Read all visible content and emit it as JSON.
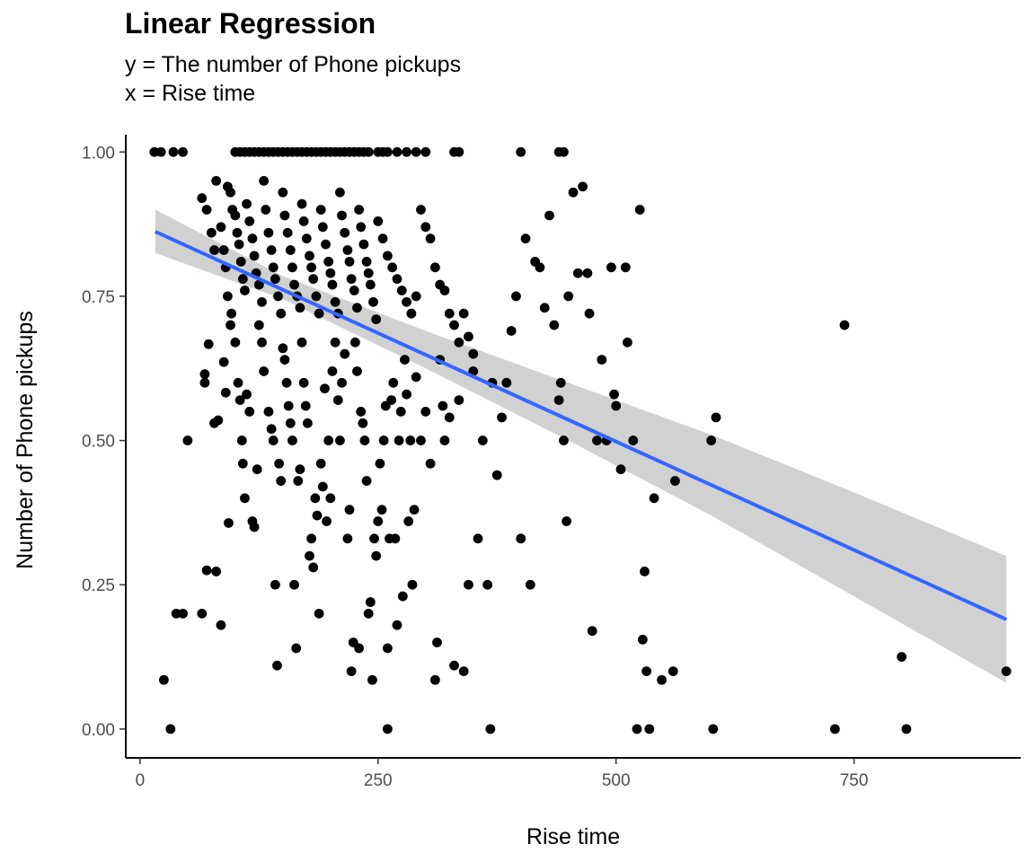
{
  "header": {
    "title": "Linear Regression",
    "subtitle_line1": "y = The number of Phone pickups",
    "subtitle_line2": "x = Rise time"
  },
  "chart_data": {
    "type": "scatter",
    "title": "Linear Regression",
    "subtitle": [
      "y = The number of Phone pickups",
      "x = Rise time"
    ],
    "xlabel": "Rise time",
    "ylabel": "Number of Phone pickups",
    "xlim": [
      -15,
      925
    ],
    "ylim": [
      -0.05,
      1.03
    ],
    "x_ticks": [
      0,
      250,
      500,
      750
    ],
    "x_tick_labels": [
      "0",
      "250",
      "500",
      "750"
    ],
    "y_ticks": [
      0,
      0.25,
      0.5,
      0.75,
      1
    ],
    "y_tick_labels": [
      "0.00",
      "0.25",
      "0.50",
      "0.75",
      "1.00"
    ],
    "grid": false,
    "colors": {
      "points": "#000000",
      "fit_line": "#3366ff",
      "confidence_band": "#cccccc"
    },
    "fit_line": {
      "x": [
        16,
        910
      ],
      "y": [
        0.862,
        0.19
      ]
    },
    "confidence_band": {
      "x": [
        16,
        150,
        300,
        450,
        600,
        750,
        910
      ],
      "upper": [
        0.9,
        0.785,
        0.69,
        0.6,
        0.51,
        0.41,
        0.3
      ],
      "lower": [
        0.825,
        0.745,
        0.625,
        0.5,
        0.37,
        0.23,
        0.08
      ]
    },
    "points": [
      [
        25,
        0.085
      ],
      [
        32,
        0
      ],
      [
        38,
        0.2
      ],
      [
        15,
        1
      ],
      [
        22,
        1
      ],
      [
        45,
        1
      ],
      [
        50,
        0.5
      ],
      [
        65,
        0.2
      ],
      [
        68,
        0.615
      ],
      [
        68,
        0.6
      ],
      [
        70,
        0.275
      ],
      [
        72,
        0.667
      ],
      [
        78,
        0.53
      ],
      [
        80,
        0.273
      ],
      [
        82,
        0.535
      ],
      [
        85,
        0.18
      ],
      [
        88,
        0.636
      ],
      [
        90,
        0.583
      ],
      [
        93,
        0.357
      ],
      [
        95,
        0.7
      ],
      [
        65,
        0.92
      ],
      [
        70,
        0.9
      ],
      [
        75,
        0.86
      ],
      [
        78,
        0.83
      ],
      [
        80,
        0.95
      ],
      [
        85,
        0.87
      ],
      [
        88,
        0.83
      ],
      [
        90,
        0.8
      ],
      [
        92,
        0.94
      ],
      [
        95,
        0.93
      ],
      [
        97,
        0.9
      ],
      [
        100,
        0.89
      ],
      [
        102,
        0.86
      ],
      [
        104,
        0.84
      ],
      [
        106,
        0.81
      ],
      [
        108,
        0.78
      ],
      [
        110,
        0.76
      ],
      [
        112,
        0.91
      ],
      [
        115,
        0.88
      ],
      [
        118,
        0.85
      ],
      [
        120,
        0.82
      ],
      [
        122,
        0.79
      ],
      [
        125,
        0.77
      ],
      [
        128,
        0.74
      ],
      [
        130,
        0.95
      ],
      [
        132,
        0.9
      ],
      [
        135,
        0.86
      ],
      [
        138,
        0.83
      ],
      [
        140,
        0.8
      ],
      [
        142,
        0.78
      ],
      [
        145,
        0.75
      ],
      [
        148,
        0.72
      ],
      [
        150,
        0.93
      ],
      [
        152,
        0.89
      ],
      [
        155,
        0.86
      ],
      [
        158,
        0.83
      ],
      [
        160,
        0.8
      ],
      [
        162,
        0.77
      ],
      [
        165,
        0.75
      ],
      [
        168,
        0.73
      ],
      [
        170,
        0.91
      ],
      [
        172,
        0.88
      ],
      [
        175,
        0.85
      ],
      [
        178,
        0.82
      ],
      [
        180,
        0.8
      ],
      [
        182,
        0.78
      ],
      [
        185,
        0.75
      ],
      [
        188,
        0.72
      ],
      [
        190,
        0.9
      ],
      [
        192,
        0.87
      ],
      [
        195,
        0.84
      ],
      [
        198,
        0.81
      ],
      [
        200,
        0.79
      ],
      [
        202,
        0.77
      ],
      [
        205,
        0.74
      ],
      [
        208,
        0.72
      ],
      [
        210,
        0.93
      ],
      [
        212,
        0.89
      ],
      [
        215,
        0.86
      ],
      [
        218,
        0.83
      ],
      [
        220,
        0.81
      ],
      [
        222,
        0.78
      ],
      [
        225,
        0.76
      ],
      [
        228,
        0.73
      ],
      [
        230,
        0.9
      ],
      [
        232,
        0.87
      ],
      [
        235,
        0.84
      ],
      [
        238,
        0.81
      ],
      [
        240,
        0.79
      ],
      [
        242,
        0.77
      ],
      [
        245,
        0.74
      ],
      [
        248,
        0.71
      ],
      [
        250,
        0.88
      ],
      [
        255,
        0.85
      ],
      [
        260,
        0.82
      ],
      [
        265,
        0.8
      ],
      [
        270,
        0.78
      ],
      [
        275,
        0.76
      ],
      [
        280,
        0.74
      ],
      [
        285,
        0.72
      ],
      [
        290,
        0.75
      ],
      [
        295,
        0.9
      ],
      [
        300,
        0.87
      ],
      [
        305,
        0.85
      ],
      [
        310,
        0.8
      ],
      [
        315,
        0.77
      ],
      [
        320,
        0.76
      ],
      [
        325,
        0.72
      ],
      [
        330,
        0.7
      ],
      [
        335,
        0.67
      ],
      [
        340,
        0.72
      ],
      [
        345,
        0.68
      ],
      [
        350,
        0.65
      ],
      [
        100,
        1
      ],
      [
        105,
        1
      ],
      [
        110,
        1
      ],
      [
        115,
        1
      ],
      [
        120,
        1
      ],
      [
        125,
        1
      ],
      [
        130,
        1
      ],
      [
        135,
        1
      ],
      [
        140,
        1
      ],
      [
        145,
        1
      ],
      [
        150,
        1
      ],
      [
        155,
        1
      ],
      [
        160,
        1
      ],
      [
        165,
        1
      ],
      [
        170,
        1
      ],
      [
        175,
        1
      ],
      [
        180,
        1
      ],
      [
        185,
        1
      ],
      [
        190,
        1
      ],
      [
        195,
        1
      ],
      [
        200,
        1
      ],
      [
        205,
        1
      ],
      [
        210,
        1
      ],
      [
        215,
        1
      ],
      [
        220,
        1
      ],
      [
        225,
        1
      ],
      [
        230,
        1
      ],
      [
        235,
        1
      ],
      [
        240,
        1
      ],
      [
        250,
        1
      ],
      [
        255,
        1
      ],
      [
        260,
        1
      ],
      [
        270,
        1
      ],
      [
        280,
        1
      ],
      [
        290,
        1
      ],
      [
        300,
        1
      ],
      [
        330,
        1
      ],
      [
        335,
        1
      ],
      [
        400,
        1
      ],
      [
        440,
        1
      ],
      [
        445,
        1
      ],
      [
        92,
        0.75
      ],
      [
        96,
        0.72
      ],
      [
        100,
        0.67
      ],
      [
        103,
        0.6
      ],
      [
        105,
        0.57
      ],
      [
        107,
        0.5
      ],
      [
        108,
        0.46
      ],
      [
        110,
        0.4
      ],
      [
        112,
        0.58
      ],
      [
        115,
        0.55
      ],
      [
        118,
        0.36
      ],
      [
        120,
        0.35
      ],
      [
        123,
        0.45
      ],
      [
        125,
        0.7
      ],
      [
        128,
        0.67
      ],
      [
        130,
        0.62
      ],
      [
        135,
        0.55
      ],
      [
        138,
        0.52
      ],
      [
        140,
        0.5
      ],
      [
        142,
        0.25
      ],
      [
        144,
        0.11
      ],
      [
        146,
        0.46
      ],
      [
        148,
        0.43
      ],
      [
        150,
        0.66
      ],
      [
        152,
        0.64
      ],
      [
        154,
        0.6
      ],
      [
        156,
        0.56
      ],
      [
        158,
        0.53
      ],
      [
        160,
        0.5
      ],
      [
        162,
        0.25
      ],
      [
        164,
        0.14
      ],
      [
        166,
        0.43
      ],
      [
        168,
        0.45
      ],
      [
        170,
        0.67
      ],
      [
        172,
        0.6
      ],
      [
        174,
        0.56
      ],
      [
        176,
        0.53
      ],
      [
        178,
        0.3
      ],
      [
        180,
        0.33
      ],
      [
        182,
        0.28
      ],
      [
        184,
        0.4
      ],
      [
        186,
        0.37
      ],
      [
        188,
        0.2
      ],
      [
        190,
        0.46
      ],
      [
        192,
        0.42
      ],
      [
        194,
        0.59
      ],
      [
        196,
        0.36
      ],
      [
        198,
        0.5
      ],
      [
        200,
        0.4
      ],
      [
        202,
        0.62
      ],
      [
        205,
        0.67
      ],
      [
        208,
        0.57
      ],
      [
        210,
        0.5
      ],
      [
        212,
        0.6
      ],
      [
        215,
        0.65
      ],
      [
        218,
        0.33
      ],
      [
        220,
        0.38
      ],
      [
        222,
        0.1
      ],
      [
        224,
        0.15
      ],
      [
        226,
        0.67
      ],
      [
        228,
        0.62
      ],
      [
        230,
        0.14
      ],
      [
        232,
        0.55
      ],
      [
        234,
        0.53
      ],
      [
        236,
        0.5
      ],
      [
        238,
        0.43
      ],
      [
        240,
        0.2
      ],
      [
        242,
        0.22
      ],
      [
        244,
        0.085
      ],
      [
        246,
        0.33
      ],
      [
        248,
        0.3
      ],
      [
        250,
        0.36
      ],
      [
        252,
        0.46
      ],
      [
        254,
        0.38
      ],
      [
        256,
        0.5
      ],
      [
        258,
        0.56
      ],
      [
        260,
        0.14
      ],
      [
        262,
        0.33
      ],
      [
        264,
        0.57
      ],
      [
        266,
        0.6
      ],
      [
        268,
        0.33
      ],
      [
        270,
        0.18
      ],
      [
        272,
        0.5
      ],
      [
        274,
        0.55
      ],
      [
        276,
        0.23
      ],
      [
        278,
        0.64
      ],
      [
        280,
        0.58
      ],
      [
        282,
        0.36
      ],
      [
        284,
        0.5
      ],
      [
        286,
        0.25
      ],
      [
        288,
        0.38
      ],
      [
        290,
        0.61
      ],
      [
        295,
        0.5
      ],
      [
        300,
        0.55
      ],
      [
        305,
        0.46
      ],
      [
        310,
        0.085
      ],
      [
        312,
        0.15
      ],
      [
        315,
        0.64
      ],
      [
        318,
        0.56
      ],
      [
        320,
        0.5
      ],
      [
        325,
        0.54
      ],
      [
        330,
        0.11
      ],
      [
        335,
        0.57
      ],
      [
        340,
        0.1
      ],
      [
        345,
        0.25
      ],
      [
        350,
        0.62
      ],
      [
        355,
        0.33
      ],
      [
        360,
        0.5
      ],
      [
        365,
        0.25
      ],
      [
        368,
        0
      ],
      [
        370,
        0.6
      ],
      [
        375,
        0.44
      ],
      [
        380,
        0.54
      ],
      [
        385,
        0.6
      ],
      [
        390,
        0.69
      ],
      [
        395,
        0.75
      ],
      [
        400,
        0.33
      ],
      [
        405,
        0.85
      ],
      [
        410,
        0.25
      ],
      [
        415,
        0.81
      ],
      [
        420,
        0.8
      ],
      [
        425,
        0.73
      ],
      [
        430,
        0.89
      ],
      [
        435,
        0.7
      ],
      [
        440,
        0.57
      ],
      [
        442,
        0.6
      ],
      [
        445,
        0.5
      ],
      [
        448,
        0.36
      ],
      [
        450,
        0.75
      ],
      [
        455,
        0.93
      ],
      [
        460,
        0.79
      ],
      [
        465,
        0.94
      ],
      [
        470,
        0.79
      ],
      [
        472,
        0.72
      ],
      [
        475,
        0.17
      ],
      [
        480,
        0.5
      ],
      [
        485,
        0.64
      ],
      [
        490,
        0.5
      ],
      [
        495,
        0.8
      ],
      [
        498,
        0.58
      ],
      [
        500,
        0.56
      ],
      [
        505,
        0.45
      ],
      [
        510,
        0.8
      ],
      [
        512,
        0.67
      ],
      [
        518,
        0.5
      ],
      [
        522,
        0
      ],
      [
        525,
        0.9
      ],
      [
        528,
        0.155
      ],
      [
        530,
        0.273
      ],
      [
        532,
        0.1
      ],
      [
        535,
        0
      ],
      [
        540,
        0.4
      ],
      [
        548,
        0.085
      ],
      [
        560,
        0.1
      ],
      [
        562,
        0.43
      ],
      [
        600,
        0.5
      ],
      [
        602,
        0
      ],
      [
        605,
        0.54
      ],
      [
        730,
        0
      ],
      [
        740,
        0.7
      ],
      [
        800,
        0.125
      ],
      [
        805,
        0
      ],
      [
        910,
        0.1
      ],
      [
        45,
        0.2
      ],
      [
        35,
        1
      ],
      [
        260,
        0
      ]
    ]
  }
}
